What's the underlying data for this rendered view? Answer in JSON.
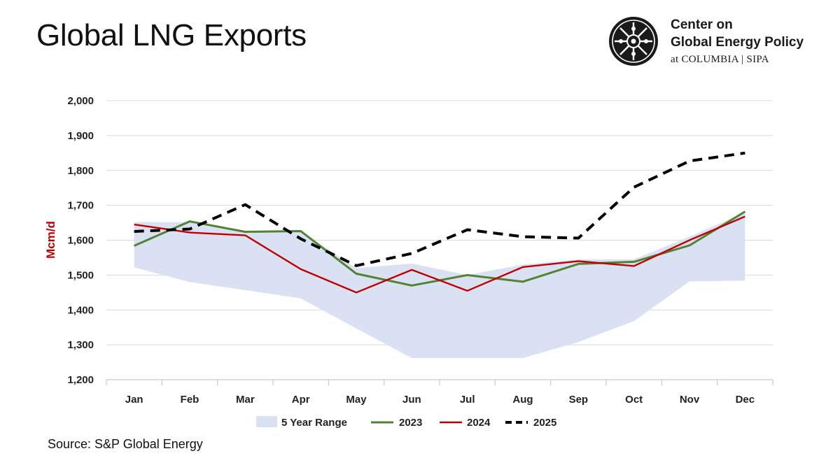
{
  "header": {
    "title": "Global LNG Exports"
  },
  "logo": {
    "line1": "Center on",
    "line2": "Global Energy Policy",
    "line3": "at COLUMBIA | SIPA"
  },
  "source": "Source: S&P Global Energy",
  "colors": {
    "range_fill": "#d9e1f2",
    "s2023": "#548235",
    "s2024": "#c00000",
    "s2025": "#000000",
    "ylabel": "#c00000",
    "grid": "#d9d9d9"
  },
  "chart_data": {
    "type": "line",
    "title": "Global LNG Exports",
    "xlabel": "",
    "ylabel": "Mcm/d",
    "categories": [
      "Jan",
      "Feb",
      "Mar",
      "Apr",
      "May",
      "Jun",
      "Jul",
      "Aug",
      "Sep",
      "Oct",
      "Nov",
      "Dec"
    ],
    "ylim": [
      1200,
      2000
    ],
    "yticks": [
      1200,
      1300,
      1400,
      1500,
      1600,
      1700,
      1800,
      1900,
      2000
    ],
    "ytick_labels": [
      "1,200",
      "1,300",
      "1,400",
      "1,500",
      "1,600",
      "1,700",
      "1,800",
      "1,900",
      "2,000"
    ],
    "grid": true,
    "legend_position": "bottom",
    "range": {
      "name": "5 Year Range",
      "low": [
        1522,
        1480,
        1457,
        1433,
        1347,
        1262,
        1262,
        1262,
        1308,
        1368,
        1482,
        1484
      ],
      "high": [
        1652,
        1652,
        1626,
        1626,
        1520,
        1533,
        1500,
        1530,
        1545,
        1545,
        1610,
        1680
      ]
    },
    "series": [
      {
        "name": "2023",
        "style": "solid",
        "values": [
          1584,
          1654,
          1624,
          1626,
          1504,
          1470,
          1500,
          1481,
          1532,
          1538,
          1585,
          1682
        ]
      },
      {
        "name": "2024",
        "style": "solid",
        "values": [
          1645,
          1622,
          1614,
          1517,
          1450,
          1515,
          1455,
          1523,
          1540,
          1526,
          1600,
          1668
        ]
      },
      {
        "name": "2025",
        "style": "dashed",
        "values": [
          1625,
          1632,
          1702,
          1604,
          1527,
          1562,
          1630,
          1610,
          1606,
          1752,
          1827,
          1850
        ]
      }
    ]
  }
}
